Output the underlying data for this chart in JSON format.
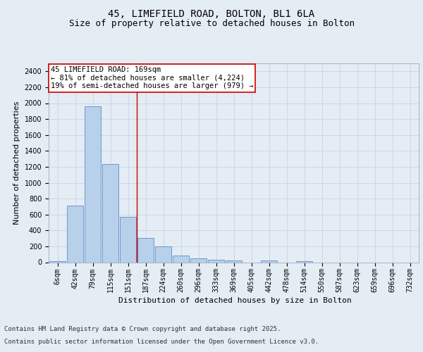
{
  "title_line1": "45, LIMEFIELD ROAD, BOLTON, BL1 6LA",
  "title_line2": "Size of property relative to detached houses in Bolton",
  "xlabel": "Distribution of detached houses by size in Bolton",
  "ylabel": "Number of detached properties",
  "categories": [
    "6sqm",
    "42sqm",
    "79sqm",
    "115sqm",
    "151sqm",
    "187sqm",
    "224sqm",
    "260sqm",
    "296sqm",
    "333sqm",
    "369sqm",
    "405sqm",
    "442sqm",
    "478sqm",
    "514sqm",
    "550sqm",
    "587sqm",
    "623sqm",
    "659sqm",
    "696sqm",
    "732sqm"
  ],
  "values": [
    15,
    710,
    1960,
    1235,
    575,
    305,
    200,
    85,
    50,
    30,
    25,
    0,
    20,
    0,
    15,
    0,
    0,
    0,
    0,
    0,
    0
  ],
  "bar_color": "#b8d0ea",
  "bar_edge_color": "#5b8fc9",
  "annotation_line1": "45 LIMEFIELD ROAD: 169sqm",
  "annotation_line2": "← 81% of detached houses are smaller (4,224)",
  "annotation_line3": "19% of semi-detached houses are larger (979) →",
  "annotation_box_color": "#ffffff",
  "annotation_box_edge_color": "#cc0000",
  "vline_x_index": 4.5,
  "vline_color": "#cc0000",
  "ylim": [
    0,
    2500
  ],
  "yticks": [
    0,
    200,
    400,
    600,
    800,
    1000,
    1200,
    1400,
    1600,
    1800,
    2000,
    2200,
    2400
  ],
  "grid_color": "#c8d4e8",
  "background_color": "#e4ecf4",
  "footer_line1": "Contains HM Land Registry data © Crown copyright and database right 2025.",
  "footer_line2": "Contains public sector information licensed under the Open Government Licence v3.0.",
  "title_fontsize": 10,
  "subtitle_fontsize": 9,
  "axis_label_fontsize": 8,
  "tick_fontsize": 7,
  "annotation_fontsize": 7.5,
  "footer_fontsize": 6.5
}
